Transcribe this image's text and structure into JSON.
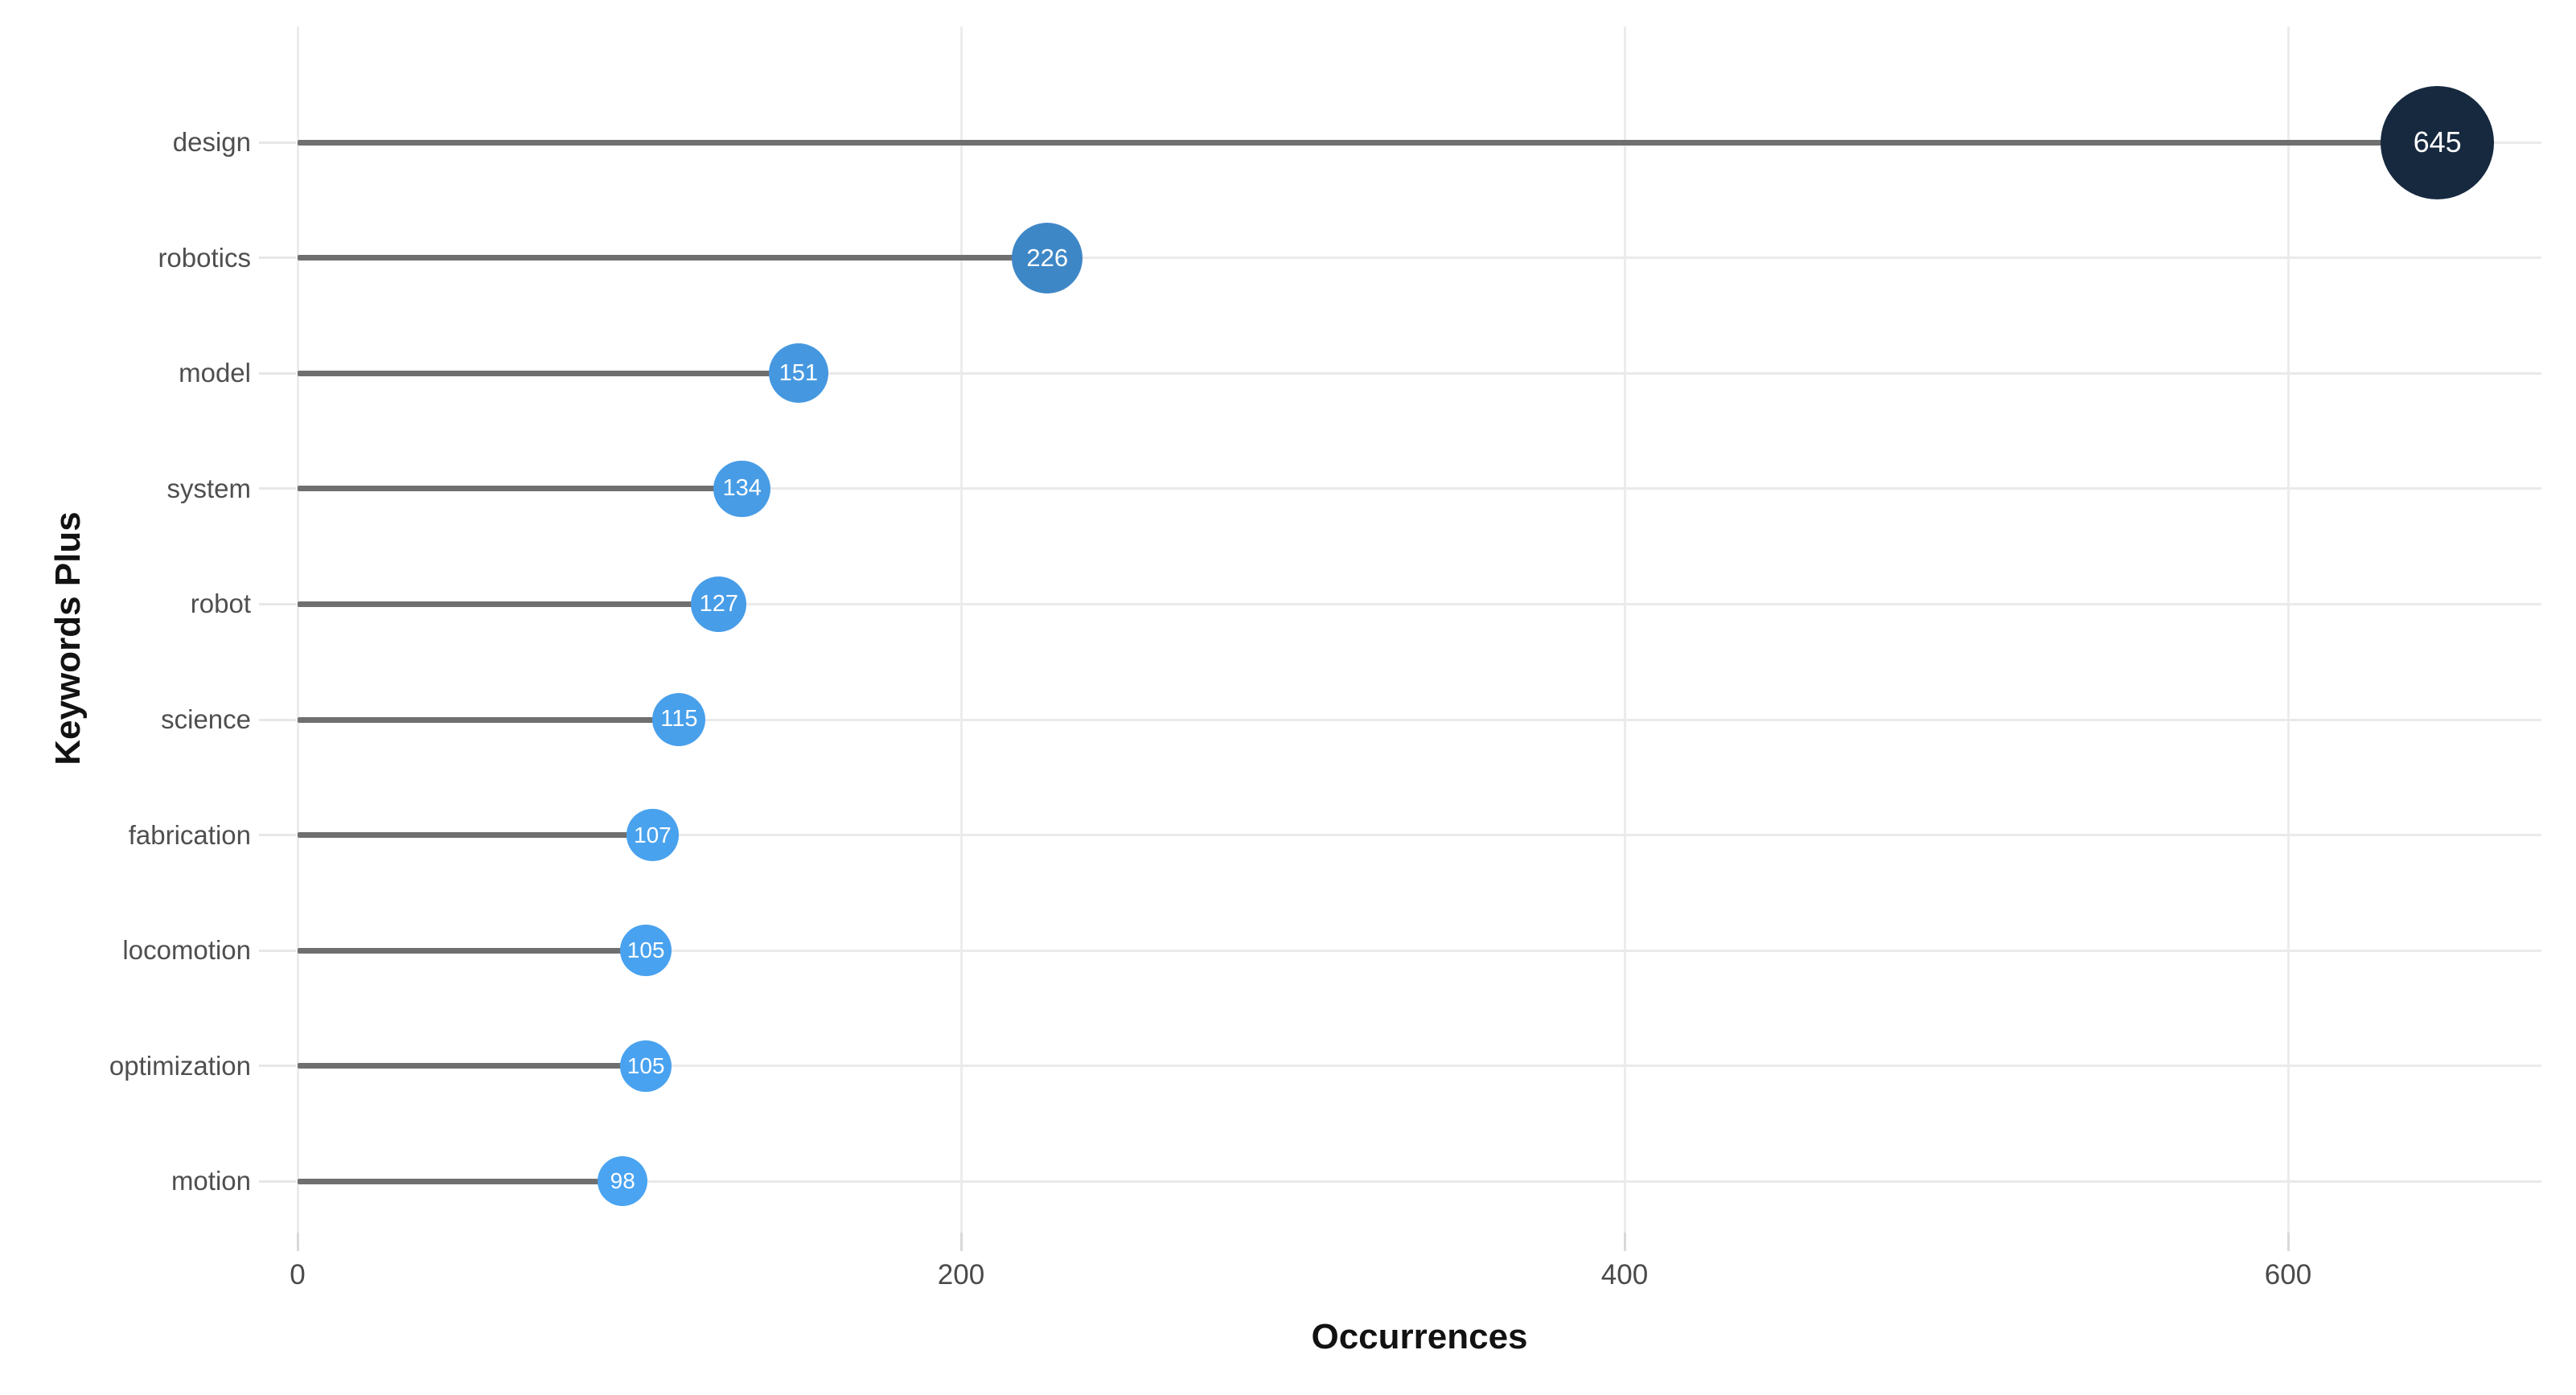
{
  "chart_data": {
    "type": "lollipop-bar",
    "orientation": "horizontal",
    "title": "",
    "xlabel": "Occurrences",
    "ylabel": "Keywords Plus",
    "categories": [
      "design",
      "robotics",
      "model",
      "system",
      "robot",
      "science",
      "fabrication",
      "locomotion",
      "optimization",
      "motion"
    ],
    "values": [
      645,
      226,
      151,
      134,
      127,
      115,
      107,
      105,
      105,
      98
    ],
    "x_ticks": [
      0,
      200,
      400,
      600
    ],
    "xlim": [
      0,
      676
    ],
    "grid": true,
    "legend": "none",
    "background": "#ffffff",
    "colors": {
      "bubble_low_value": "#4aa4f1",
      "bubble_high_value": "#16293f",
      "bubble_text": "#ffffff",
      "stem": "#6f6f6f",
      "gridline": "#ececec",
      "tick_label": "#4a4a4a",
      "category_label": "#4f4f4f",
      "axis_title": "#121212"
    }
  }
}
